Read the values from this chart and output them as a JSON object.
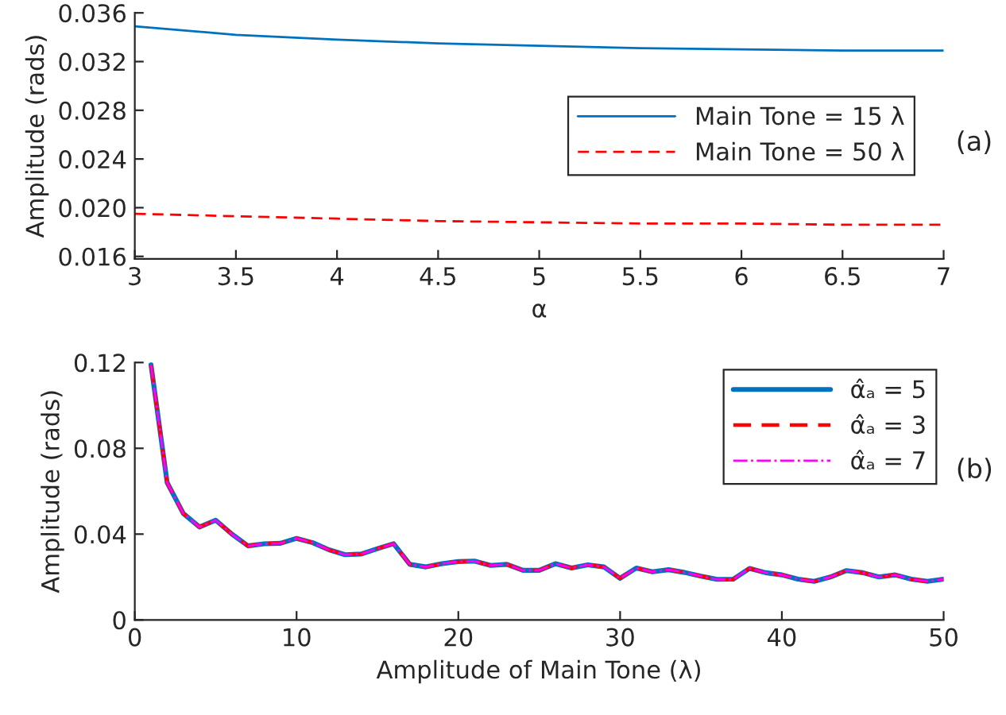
{
  "chart_data": [
    {
      "type": "line",
      "xlabel": "α",
      "ylabel": "Amplitude (rads)",
      "annotations": [
        "(a)"
      ],
      "x": [
        3,
        3.5,
        4,
        4.5,
        5,
        5.5,
        6,
        6.5,
        7
      ],
      "series": [
        {
          "name": "Main Tone = 15 λ",
          "color": "#0072bd",
          "line_style": "solid",
          "values": [
            0.0349,
            0.0342,
            0.0338,
            0.0335,
            0.0333,
            0.0331,
            0.033,
            0.0329,
            0.0329
          ]
        },
        {
          "name": "Main Tone = 50 λ",
          "color": "#ff0000",
          "line_style": "dashed",
          "values": [
            0.0195,
            0.0193,
            0.0191,
            0.0189,
            0.0188,
            0.0187,
            0.0187,
            0.0186,
            0.0186
          ]
        }
      ],
      "xlim": [
        3,
        7
      ],
      "xticks": [
        3,
        3.5,
        4,
        4.5,
        5,
        5.5,
        6,
        6.5,
        7
      ],
      "ylim": [
        0.0158,
        0.036
      ],
      "yticks": [
        {
          "value": 0.016,
          "label": "0.016"
        },
        {
          "value": 0.02,
          "label": "0.020"
        },
        {
          "value": 0.024,
          "label": "0.024"
        },
        {
          "value": 0.028,
          "label": "0.028"
        },
        {
          "value": 0.032,
          "label": "0.032"
        },
        {
          "value": 0.036,
          "label": "0.036"
        }
      ],
      "grid": false,
      "legend": "right",
      "marker": "none"
    },
    {
      "type": "line",
      "xlabel": "Amplitude of Main Tone (λ)",
      "ylabel": "Amplitude (rads)",
      "annotations": [
        "(b)"
      ],
      "x": [
        1,
        2,
        3,
        4,
        5,
        6,
        7,
        8,
        9,
        10,
        11,
        12,
        13,
        14,
        15,
        16,
        17,
        18,
        19,
        20,
        21,
        22,
        23,
        24,
        25,
        26,
        27,
        28,
        29,
        30,
        31,
        32,
        33,
        34,
        35,
        36,
        37,
        38,
        39,
        40,
        41,
        42,
        43,
        44,
        45,
        46,
        47,
        48,
        49,
        50
      ],
      "series": [
        {
          "name": "α̂ₐ = 5",
          "color": "#0072bd",
          "line_style": "solid",
          "values": [
            0.119,
            0.064,
            0.0496,
            0.0433,
            0.0465,
            0.04,
            0.0345,
            0.0355,
            0.0357,
            0.038,
            0.036,
            0.0327,
            0.0304,
            0.0307,
            0.0332,
            0.0355,
            0.0259,
            0.0247,
            0.0262,
            0.0272,
            0.0274,
            0.0254,
            0.0259,
            0.0231,
            0.0231,
            0.0262,
            0.0242,
            0.0257,
            0.0247,
            0.0194,
            0.0242,
            0.0224,
            0.0234,
            0.0221,
            0.0204,
            0.0189,
            0.019,
            0.024,
            0.022,
            0.021,
            0.019,
            0.018,
            0.02,
            0.023,
            0.022,
            0.02,
            0.021,
            0.019,
            0.018,
            0.019
          ]
        },
        {
          "name": "α̂ₐ = 3",
          "color": "#ff0000",
          "line_style": "dashed",
          "values": [
            0.119,
            0.064,
            0.0496,
            0.0433,
            0.0465,
            0.04,
            0.0345,
            0.0355,
            0.0357,
            0.038,
            0.036,
            0.0327,
            0.0304,
            0.0307,
            0.0332,
            0.0355,
            0.0259,
            0.0247,
            0.0262,
            0.0272,
            0.0274,
            0.0254,
            0.0259,
            0.0231,
            0.0231,
            0.0262,
            0.0242,
            0.0257,
            0.0247,
            0.0194,
            0.0242,
            0.0224,
            0.0234,
            0.0221,
            0.0204,
            0.0189,
            0.019,
            0.024,
            0.022,
            0.021,
            0.019,
            0.018,
            0.02,
            0.023,
            0.022,
            0.02,
            0.021,
            0.019,
            0.018,
            0.019
          ]
        },
        {
          "name": "α̂ₐ = 7",
          "color": "#ff00ff",
          "line_style": "dashdot",
          "values": [
            0.119,
            0.064,
            0.0496,
            0.0433,
            0.0465,
            0.04,
            0.0345,
            0.0355,
            0.0357,
            0.038,
            0.036,
            0.0327,
            0.0304,
            0.0307,
            0.0332,
            0.0355,
            0.0259,
            0.0247,
            0.0262,
            0.0272,
            0.0274,
            0.0254,
            0.0259,
            0.0231,
            0.0231,
            0.0262,
            0.0242,
            0.0257,
            0.0247,
            0.0194,
            0.0242,
            0.0224,
            0.0234,
            0.0221,
            0.0204,
            0.0189,
            0.019,
            0.024,
            0.022,
            0.021,
            0.019,
            0.018,
            0.02,
            0.023,
            0.022,
            0.02,
            0.021,
            0.019,
            0.018,
            0.019
          ]
        }
      ],
      "xlim": [
        0,
        50
      ],
      "xticks": [
        0,
        10,
        20,
        30,
        40,
        50
      ],
      "ylim": [
        0,
        0.12
      ],
      "yticks": [
        0,
        0.04,
        0.08,
        0.12
      ],
      "grid": false,
      "legend": "top right",
      "marker": "none"
    }
  ]
}
